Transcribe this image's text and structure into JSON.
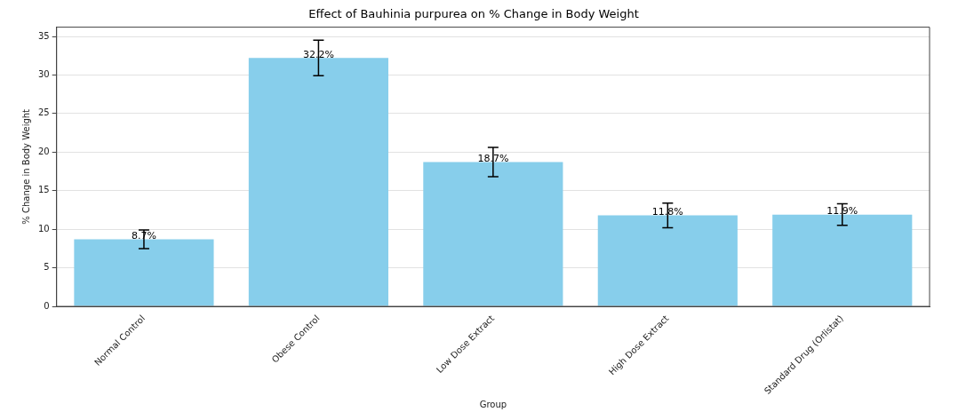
{
  "chart_data": {
    "type": "bar",
    "title": "Effect of Bauhinia purpurea on % Change in Body Weight",
    "xlabel": "Group",
    "ylabel": "% Change in Body Weight",
    "categories": [
      "Normal Control",
      "Obese Control",
      "Low Dose Extract",
      "High Dose Extract",
      "Standard Drug (Orlistat)"
    ],
    "values": [
      8.7,
      32.2,
      18.7,
      11.8,
      11.9
    ],
    "errors": [
      1.2,
      2.3,
      1.9,
      1.6,
      1.4
    ],
    "value_labels": [
      "8.7%",
      "32.2%",
      "18.7%",
      "11.8%",
      "11.9%"
    ],
    "color": "#87ceeb",
    "ylim": [
      0,
      36.2
    ],
    "yticks": [
      0,
      5,
      10,
      15,
      20,
      25,
      30,
      35
    ],
    "grid": "y",
    "legend": false
  }
}
